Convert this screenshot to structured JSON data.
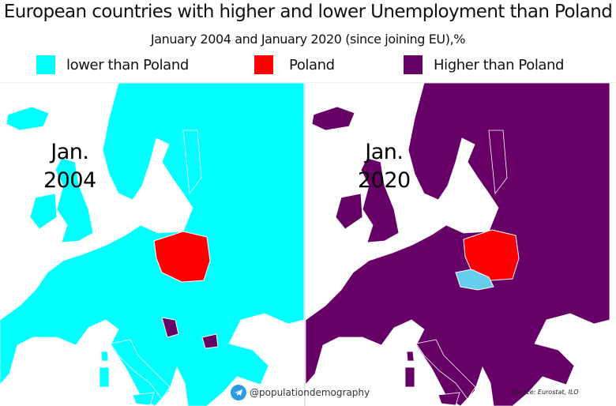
{
  "title": "European countries with higher and lower Unemployment than Poland",
  "subtitle": "January 2004 and January 2020 (since joining EU),%",
  "legend": [
    {
      "label": "lower than Poland",
      "color": "#00ffff"
    },
    {
      "label": "Poland",
      "color": "#ff0000"
    },
    {
      "label": "Higher than Poland",
      "color": "#660066"
    }
  ],
  "maps": [
    {
      "line1": "Jan.",
      "line2": "2004",
      "base_color": "#00ffff",
      "poland_color": "#ff0000",
      "czechia_color": "#00ffff",
      "balkans_color": "#660066"
    },
    {
      "line1": "Jan.",
      "line2": "2020",
      "base_color": "#660066",
      "poland_color": "#ff0000",
      "czechia_color": "#66ccee",
      "balkans_color": "#660066"
    }
  ],
  "credit": "@populationdemography",
  "source": "Source: Eurostat, ILO"
}
